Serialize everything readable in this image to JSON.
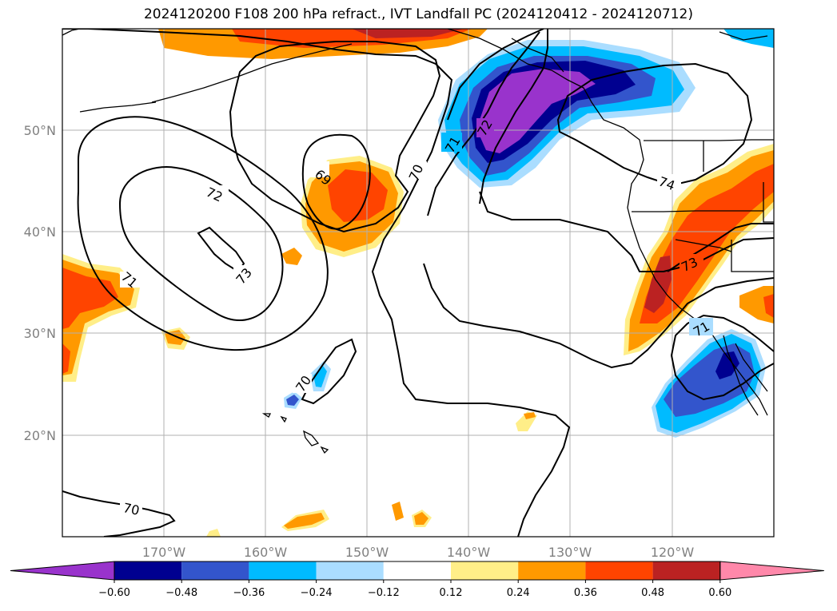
{
  "title": "2024120200 F108 200 hPa refract., IVT Landfall PC (2024120412 - 2024120712)",
  "map": {
    "lat_labels": [
      "50°N",
      "40°N",
      "30°N",
      "20°N"
    ],
    "lon_labels": [
      "170°W",
      "160°W",
      "150°W",
      "140°W",
      "130°W",
      "120°W"
    ]
  },
  "contour_labels": [
    "69",
    "70",
    "70",
    "70",
    "71",
    "71",
    "71",
    "72",
    "72",
    "73",
    "73",
    "74"
  ],
  "colorbar": {
    "ticks": [
      "−0.60",
      "−0.48",
      "−0.36",
      "−0.24",
      "−0.12",
      "0.12",
      "0.24",
      "0.36",
      "0.48",
      "0.60"
    ],
    "colors": [
      "#9933cc",
      "#000090",
      "#3355cc",
      "#00bbff",
      "#aaddff",
      "#ffffff",
      "#ffee88",
      "#ff9900",
      "#ff4400",
      "#bb2222",
      "#ff88aa"
    ]
  }
}
